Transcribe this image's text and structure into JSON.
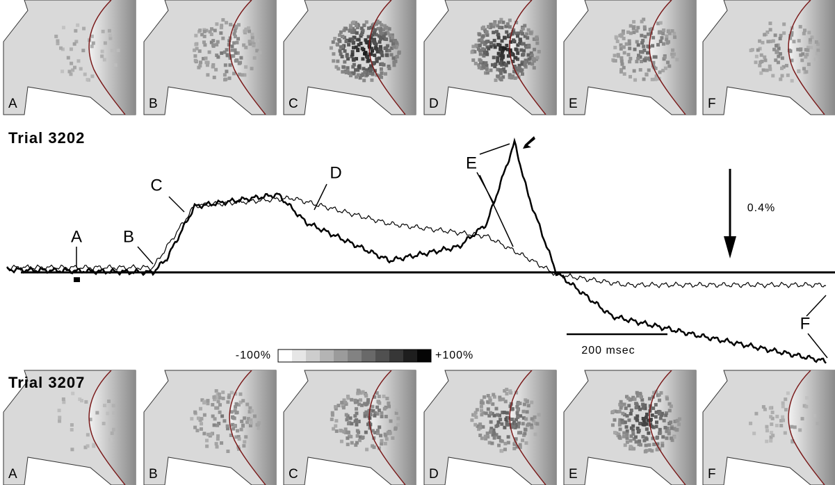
{
  "top_panels": {
    "labels": [
      "A",
      "B",
      "C",
      "D",
      "E",
      "F"
    ]
  },
  "trial_top": "Trial 3202",
  "traces": {
    "labels": {
      "a": "A",
      "b": "B",
      "c": "C",
      "d": "D",
      "e": "E",
      "f": "F"
    },
    "amplitude_scale": "0.4%",
    "time_scale": "200 msec"
  },
  "colorbar": {
    "min_label": "-100%",
    "max_label": "+100%"
  },
  "trial_bottom": "Trial 3207",
  "bottom_panels": {
    "labels": [
      "A",
      "B",
      "C",
      "D",
      "E",
      "F"
    ]
  }
}
